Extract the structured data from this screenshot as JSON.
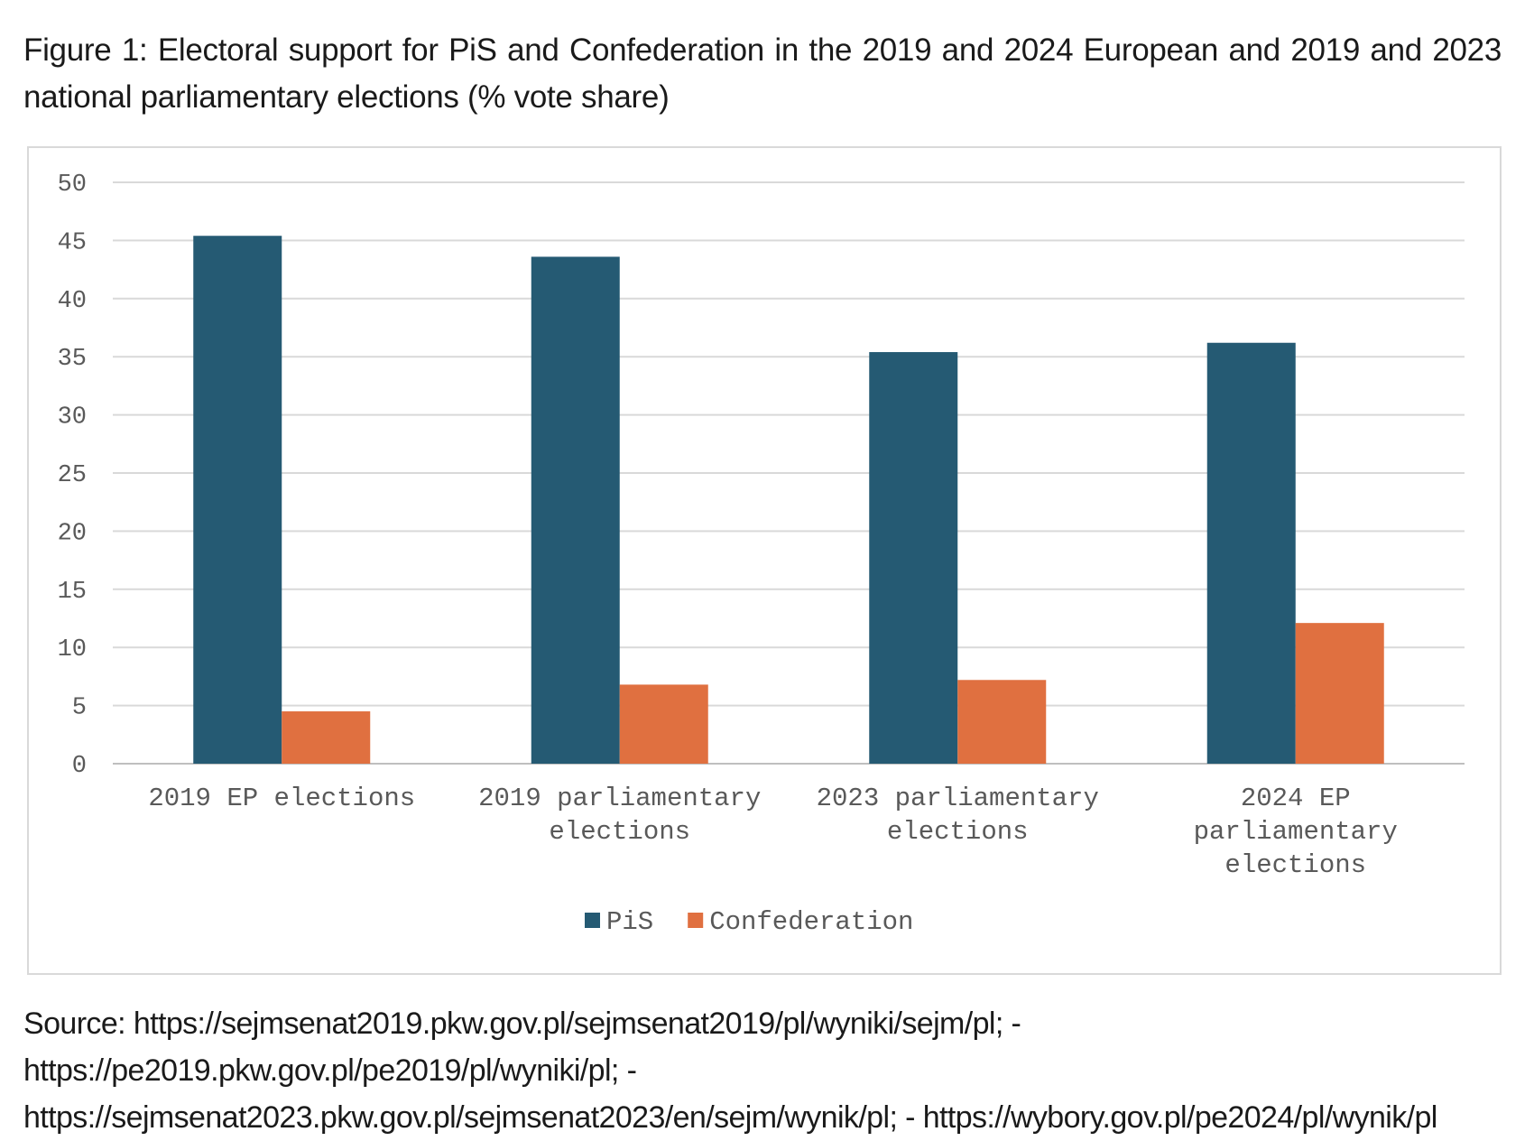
{
  "caption": "Figure 1: Electoral support for PiS and Confederation in the 2019 and 2024 European and 2019 and 2023 national parliamentary elections (% vote share)",
  "source": "Source: https://sejmsenat2019.pkw.gov.pl/sejmsenat2019/pl/wyniki/sejm/pl; - https://pe2019.pkw.gov.pl/pe2019/pl/wyniki/pl; - https://sejmsenat2023.pkw.gov.pl/sejmsenat2023/en/sejm/wynik/pl; - https://wybory.gov.pl/pe2024/pl/wynik/pl",
  "chart_data": {
    "type": "bar",
    "title": "",
    "xlabel": "",
    "ylabel": "",
    "ylim": [
      0,
      50
    ],
    "yticks": [
      "0",
      "5",
      "10",
      "15",
      "20",
      "25",
      "30",
      "35",
      "40",
      "45",
      "50"
    ],
    "grid": true,
    "legend_position": "bottom",
    "categories": [
      "2019 EP elections",
      "2019 parliamentary elections",
      "2023 parliamentary elections",
      "2024 EP parliamentary elections"
    ],
    "category_label_lines": [
      [
        "2019 EP elections"
      ],
      [
        "2019 parliamentary",
        "elections"
      ],
      [
        "2023 parliamentary",
        "elections"
      ],
      [
        "2024 EP",
        "parliamentary",
        "elections"
      ]
    ],
    "series": [
      {
        "name": "PiS",
        "color": "#255a73",
        "values": [
          45.4,
          43.6,
          35.4,
          36.2
        ]
      },
      {
        "name": "Confederation",
        "color": "#e07040",
        "values": [
          4.5,
          6.8,
          7.2,
          12.1
        ]
      }
    ]
  }
}
